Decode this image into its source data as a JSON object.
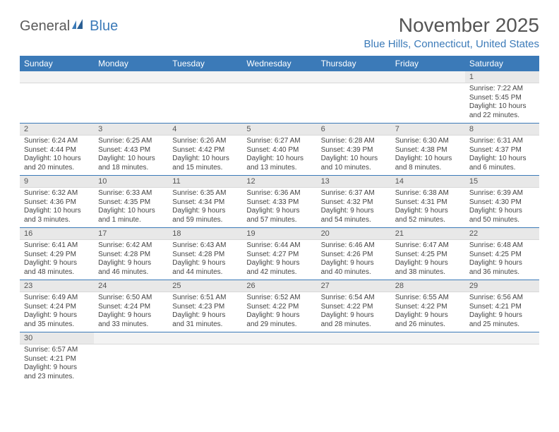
{
  "logo": {
    "part1": "General",
    "part2": "Blue"
  },
  "title": "November 2025",
  "location": "Blue Hills, Connecticut, United States",
  "colors": {
    "header_bg": "#3b7ab8",
    "header_text": "#ffffff",
    "daynum_bg": "#e8e8e8",
    "row_border": "#3b7ab8",
    "logo_gray": "#5a5a5a",
    "logo_blue": "#3b7ab8"
  },
  "weekdays": [
    "Sunday",
    "Monday",
    "Tuesday",
    "Wednesday",
    "Thursday",
    "Friday",
    "Saturday"
  ],
  "weeks": [
    [
      {
        "empty": true
      },
      {
        "empty": true
      },
      {
        "empty": true
      },
      {
        "empty": true
      },
      {
        "empty": true
      },
      {
        "empty": true
      },
      {
        "day": "1",
        "sunrise": "Sunrise: 7:22 AM",
        "sunset": "Sunset: 5:45 PM",
        "daylight": "Daylight: 10 hours and 22 minutes."
      }
    ],
    [
      {
        "day": "2",
        "sunrise": "Sunrise: 6:24 AM",
        "sunset": "Sunset: 4:44 PM",
        "daylight": "Daylight: 10 hours and 20 minutes."
      },
      {
        "day": "3",
        "sunrise": "Sunrise: 6:25 AM",
        "sunset": "Sunset: 4:43 PM",
        "daylight": "Daylight: 10 hours and 18 minutes."
      },
      {
        "day": "4",
        "sunrise": "Sunrise: 6:26 AM",
        "sunset": "Sunset: 4:42 PM",
        "daylight": "Daylight: 10 hours and 15 minutes."
      },
      {
        "day": "5",
        "sunrise": "Sunrise: 6:27 AM",
        "sunset": "Sunset: 4:40 PM",
        "daylight": "Daylight: 10 hours and 13 minutes."
      },
      {
        "day": "6",
        "sunrise": "Sunrise: 6:28 AM",
        "sunset": "Sunset: 4:39 PM",
        "daylight": "Daylight: 10 hours and 10 minutes."
      },
      {
        "day": "7",
        "sunrise": "Sunrise: 6:30 AM",
        "sunset": "Sunset: 4:38 PM",
        "daylight": "Daylight: 10 hours and 8 minutes."
      },
      {
        "day": "8",
        "sunrise": "Sunrise: 6:31 AM",
        "sunset": "Sunset: 4:37 PM",
        "daylight": "Daylight: 10 hours and 6 minutes."
      }
    ],
    [
      {
        "day": "9",
        "sunrise": "Sunrise: 6:32 AM",
        "sunset": "Sunset: 4:36 PM",
        "daylight": "Daylight: 10 hours and 3 minutes."
      },
      {
        "day": "10",
        "sunrise": "Sunrise: 6:33 AM",
        "sunset": "Sunset: 4:35 PM",
        "daylight": "Daylight: 10 hours and 1 minute."
      },
      {
        "day": "11",
        "sunrise": "Sunrise: 6:35 AM",
        "sunset": "Sunset: 4:34 PM",
        "daylight": "Daylight: 9 hours and 59 minutes."
      },
      {
        "day": "12",
        "sunrise": "Sunrise: 6:36 AM",
        "sunset": "Sunset: 4:33 PM",
        "daylight": "Daylight: 9 hours and 57 minutes."
      },
      {
        "day": "13",
        "sunrise": "Sunrise: 6:37 AM",
        "sunset": "Sunset: 4:32 PM",
        "daylight": "Daylight: 9 hours and 54 minutes."
      },
      {
        "day": "14",
        "sunrise": "Sunrise: 6:38 AM",
        "sunset": "Sunset: 4:31 PM",
        "daylight": "Daylight: 9 hours and 52 minutes."
      },
      {
        "day": "15",
        "sunrise": "Sunrise: 6:39 AM",
        "sunset": "Sunset: 4:30 PM",
        "daylight": "Daylight: 9 hours and 50 minutes."
      }
    ],
    [
      {
        "day": "16",
        "sunrise": "Sunrise: 6:41 AM",
        "sunset": "Sunset: 4:29 PM",
        "daylight": "Daylight: 9 hours and 48 minutes."
      },
      {
        "day": "17",
        "sunrise": "Sunrise: 6:42 AM",
        "sunset": "Sunset: 4:28 PM",
        "daylight": "Daylight: 9 hours and 46 minutes."
      },
      {
        "day": "18",
        "sunrise": "Sunrise: 6:43 AM",
        "sunset": "Sunset: 4:28 PM",
        "daylight": "Daylight: 9 hours and 44 minutes."
      },
      {
        "day": "19",
        "sunrise": "Sunrise: 6:44 AM",
        "sunset": "Sunset: 4:27 PM",
        "daylight": "Daylight: 9 hours and 42 minutes."
      },
      {
        "day": "20",
        "sunrise": "Sunrise: 6:46 AM",
        "sunset": "Sunset: 4:26 PM",
        "daylight": "Daylight: 9 hours and 40 minutes."
      },
      {
        "day": "21",
        "sunrise": "Sunrise: 6:47 AM",
        "sunset": "Sunset: 4:25 PM",
        "daylight": "Daylight: 9 hours and 38 minutes."
      },
      {
        "day": "22",
        "sunrise": "Sunrise: 6:48 AM",
        "sunset": "Sunset: 4:25 PM",
        "daylight": "Daylight: 9 hours and 36 minutes."
      }
    ],
    [
      {
        "day": "23",
        "sunrise": "Sunrise: 6:49 AM",
        "sunset": "Sunset: 4:24 PM",
        "daylight": "Daylight: 9 hours and 35 minutes."
      },
      {
        "day": "24",
        "sunrise": "Sunrise: 6:50 AM",
        "sunset": "Sunset: 4:24 PM",
        "daylight": "Daylight: 9 hours and 33 minutes."
      },
      {
        "day": "25",
        "sunrise": "Sunrise: 6:51 AM",
        "sunset": "Sunset: 4:23 PM",
        "daylight": "Daylight: 9 hours and 31 minutes."
      },
      {
        "day": "26",
        "sunrise": "Sunrise: 6:52 AM",
        "sunset": "Sunset: 4:22 PM",
        "daylight": "Daylight: 9 hours and 29 minutes."
      },
      {
        "day": "27",
        "sunrise": "Sunrise: 6:54 AM",
        "sunset": "Sunset: 4:22 PM",
        "daylight": "Daylight: 9 hours and 28 minutes."
      },
      {
        "day": "28",
        "sunrise": "Sunrise: 6:55 AM",
        "sunset": "Sunset: 4:22 PM",
        "daylight": "Daylight: 9 hours and 26 minutes."
      },
      {
        "day": "29",
        "sunrise": "Sunrise: 6:56 AM",
        "sunset": "Sunset: 4:21 PM",
        "daylight": "Daylight: 9 hours and 25 minutes."
      }
    ],
    [
      {
        "day": "30",
        "sunrise": "Sunrise: 6:57 AM",
        "sunset": "Sunset: 4:21 PM",
        "daylight": "Daylight: 9 hours and 23 minutes."
      },
      {
        "empty": true
      },
      {
        "empty": true
      },
      {
        "empty": true
      },
      {
        "empty": true
      },
      {
        "empty": true
      },
      {
        "empty": true
      }
    ]
  ]
}
